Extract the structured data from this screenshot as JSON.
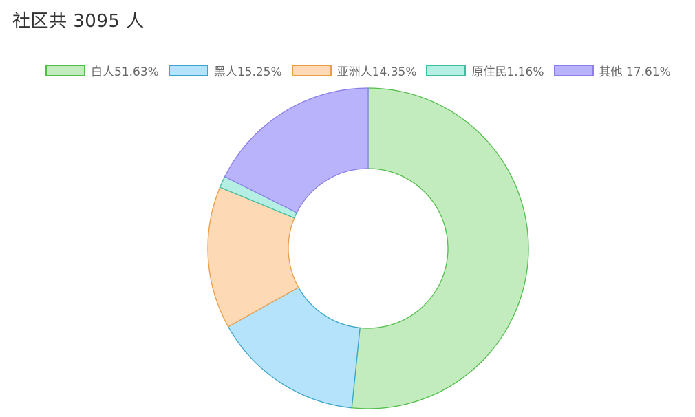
{
  "chart_data": {
    "type": "pie",
    "variant": "donut",
    "title": "社区共 3095 人",
    "legend_position": "top",
    "slices": [
      {
        "label": "白人51.63%",
        "value": 51.63,
        "fill": "#c2ecbe",
        "stroke": "#52bd4b"
      },
      {
        "label": "黑人15.25%",
        "value": 15.25,
        "fill": "#b4e3fb",
        "stroke": "#3aa5c8"
      },
      {
        "label": "亚洲人14.35%",
        "value": 14.35,
        "fill": "#fdd9b5",
        "stroke": "#ec9d47"
      },
      {
        "label": "原住民1.16%",
        "value": 1.16,
        "fill": "#b5eee3",
        "stroke": "#3cbf9f"
      },
      {
        "label": "其他 17.61%",
        "value": 17.61,
        "fill": "#b9b3fb",
        "stroke": "#8b7ee8"
      }
    ]
  }
}
